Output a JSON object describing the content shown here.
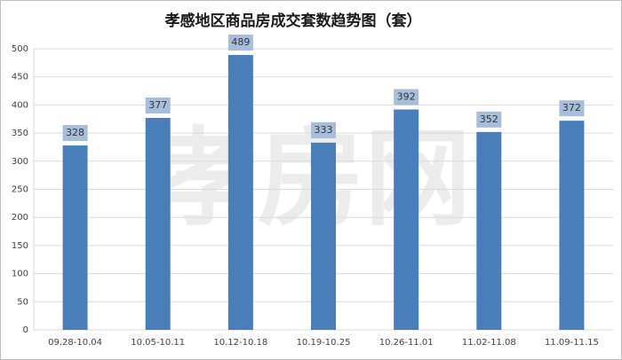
{
  "chart_data": {
    "type": "bar",
    "title": "孝感地区商品房成交套数趋势图（套）",
    "watermark": "孝房网",
    "categories": [
      "09.28-10.04",
      "10.05-10.11",
      "10.12-10.18",
      "10.19-10.25",
      "10.26-11.01",
      "11.02-11.08",
      "11.09-11.15"
    ],
    "values": [
      328,
      377,
      489,
      333,
      392,
      352,
      372
    ],
    "color": "#4a7ebb",
    "label_color": "#a6bddb",
    "ylim": [
      0,
      500
    ],
    "yticks": [
      0,
      50,
      100,
      150,
      200,
      250,
      300,
      350,
      400,
      450,
      500
    ],
    "grid": true
  }
}
